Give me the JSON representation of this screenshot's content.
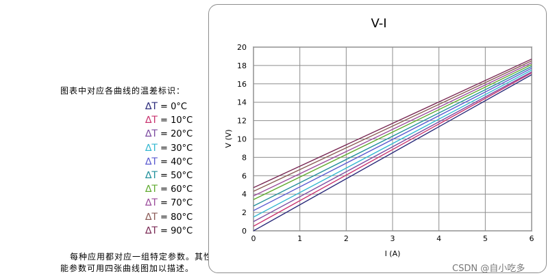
{
  "legend": {
    "title": "图表中对应各曲线的温差标识：",
    "items": [
      {
        "delta": "∆T",
        "label": " = 0°C",
        "color": "#2a2a7a"
      },
      {
        "delta": "∆T",
        "label": " = 10°C",
        "color": "#c8326e"
      },
      {
        "delta": "∆T",
        "label": " = 20°C",
        "color": "#7b4aa0"
      },
      {
        "delta": "∆T",
        "label": " = 30°C",
        "color": "#33b7d0"
      },
      {
        "delta": "∆T",
        "label": " = 40°C",
        "color": "#5a5ad0"
      },
      {
        "delta": "∆T",
        "label": " = 50°C",
        "color": "#1f8f9a"
      },
      {
        "delta": "∆T",
        "label": " = 60°C",
        "color": "#5faa2e"
      },
      {
        "delta": "∆T",
        "label": " = 70°C",
        "color": "#9a4a9a"
      },
      {
        "delta": "∆T",
        "label": " = 80°C",
        "color": "#8a5a55"
      },
      {
        "delta": "∆T",
        "label": " = 90°C",
        "color": "#7a2a55"
      }
    ]
  },
  "note": {
    "line1": "每种应用都对应一组特定参数。其性",
    "line2": "能参数可用四张曲线图加以描述。"
  },
  "watermark": "CSDN @自小吃多",
  "chart_data": {
    "type": "line",
    "title": "V-I",
    "xlabel": "I (A)",
    "ylabel": "V (V)",
    "xlim": [
      0,
      6
    ],
    "ylim": [
      0,
      20
    ],
    "xticks": [
      0,
      1,
      2,
      3,
      4,
      5,
      6
    ],
    "yticks": [
      0,
      2,
      4,
      6,
      8,
      10,
      12,
      14,
      16,
      18,
      20
    ],
    "grid": true,
    "series": [
      {
        "name": "∆T = 0°C",
        "x": [
          0,
          6
        ],
        "y": [
          0.0,
          17.0
        ],
        "color": "#2a2a7a"
      },
      {
        "name": "∆T = 10°C",
        "x": [
          0,
          6
        ],
        "y": [
          0.5,
          17.2
        ],
        "color": "#c8326e"
      },
      {
        "name": "∆T = 20°C",
        "x": [
          0,
          6
        ],
        "y": [
          1.0,
          17.3
        ],
        "color": "#7b4aa0"
      },
      {
        "name": "∆T = 30°C",
        "x": [
          0,
          6
        ],
        "y": [
          1.5,
          17.5
        ],
        "color": "#33b7d0"
      },
      {
        "name": "∆T = 40°C",
        "x": [
          0,
          6
        ],
        "y": [
          2.2,
          17.7
        ],
        "color": "#5a5ad0"
      },
      {
        "name": "∆T = 50°C",
        "x": [
          0,
          6
        ],
        "y": [
          2.7,
          17.9
        ],
        "color": "#1f8f9a"
      },
      {
        "name": "∆T = 60°C",
        "x": [
          0,
          6
        ],
        "y": [
          3.4,
          18.1
        ],
        "color": "#5faa2e"
      },
      {
        "name": "∆T = 70°C",
        "x": [
          0,
          6
        ],
        "y": [
          3.8,
          18.3
        ],
        "color": "#9a4a9a"
      },
      {
        "name": "∆T = 80°C",
        "x": [
          0,
          6
        ],
        "y": [
          4.3,
          18.5
        ],
        "color": "#8a5a55"
      },
      {
        "name": "∆T = 90°C",
        "x": [
          0,
          6
        ],
        "y": [
          4.7,
          18.7
        ],
        "color": "#7a2a55"
      }
    ]
  }
}
